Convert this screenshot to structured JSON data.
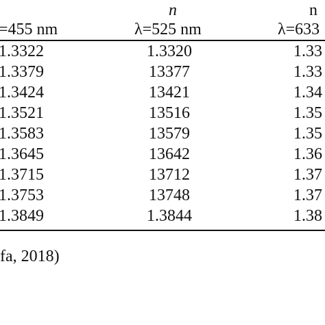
{
  "table": {
    "columns": [
      {
        "symbol": "",
        "wavelength": "=455 nm"
      },
      {
        "symbol": "n",
        "wavelength": "λ=525 nm"
      },
      {
        "symbol": "n",
        "wavelength": "λ=633"
      }
    ],
    "rows": [
      [
        "1.3322",
        "1.3320",
        "1.33"
      ],
      [
        "1.3379",
        "13377",
        "1.33"
      ],
      [
        "1.3424",
        "13421",
        "1.34"
      ],
      [
        "1.3521",
        "13516",
        "1.35"
      ],
      [
        "1.3583",
        "13579",
        "1.35"
      ],
      [
        "1.3645",
        "13642",
        "1.36"
      ],
      [
        "1.3715",
        "13712",
        "1.37"
      ],
      [
        "1.3753",
        "13748",
        "1.37"
      ],
      [
        "1.3849",
        "1.3844",
        "1.38"
      ]
    ]
  },
  "caption": "fa, 2018)"
}
